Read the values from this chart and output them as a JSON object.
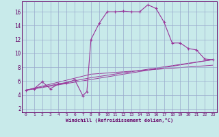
{
  "xlabel": "Windchill (Refroidissement éolien,°C)",
  "bg_color": "#c8eaea",
  "line_color": "#993399",
  "grid_color": "#99aacc",
  "xlim": [
    -0.5,
    23.5
  ],
  "ylim": [
    1.5,
    17.5
  ],
  "xticks": [
    0,
    1,
    2,
    3,
    4,
    5,
    6,
    7,
    8,
    9,
    10,
    11,
    12,
    13,
    14,
    15,
    16,
    17,
    18,
    19,
    20,
    21,
    22,
    23
  ],
  "yticks": [
    2,
    4,
    6,
    8,
    10,
    12,
    14,
    16
  ],
  "series": [
    [
      0,
      4.7
    ],
    [
      1,
      4.9
    ],
    [
      2,
      5.9
    ],
    [
      3,
      4.9
    ],
    [
      4,
      5.6
    ],
    [
      5,
      5.7
    ],
    [
      6,
      6.2
    ],
    [
      7,
      3.9
    ],
    [
      7.5,
      4.5
    ],
    [
      8,
      12.0
    ],
    [
      9,
      14.3
    ],
    [
      10,
      16.0
    ],
    [
      11,
      16.0
    ],
    [
      12,
      16.1
    ],
    [
      13,
      16.0
    ],
    [
      14,
      16.0
    ],
    [
      15,
      17.0
    ],
    [
      16,
      16.5
    ],
    [
      17,
      14.5
    ],
    [
      18,
      11.5
    ],
    [
      19,
      11.5
    ],
    [
      20,
      10.7
    ],
    [
      21,
      10.5
    ],
    [
      22,
      9.2
    ],
    [
      23,
      9.1
    ]
  ],
  "line2": [
    [
      0,
      4.7
    ],
    [
      23,
      9.1
    ]
  ],
  "line3": [
    [
      0,
      4.7
    ],
    [
      8,
      6.5
    ],
    [
      23,
      9.1
    ]
  ],
  "line4": [
    [
      0,
      4.7
    ],
    [
      8,
      7.0
    ],
    [
      23,
      8.3
    ]
  ]
}
